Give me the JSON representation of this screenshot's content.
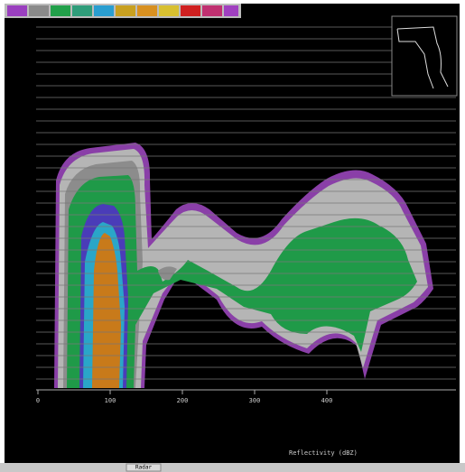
{
  "x_axis": {
    "labels": [
      "0",
      "100",
      "200",
      "300",
      "400"
    ]
  },
  "status": {
    "text": "Reflectivity (dBZ)"
  },
  "taskbar": {
    "item": "Radar"
  }
}
